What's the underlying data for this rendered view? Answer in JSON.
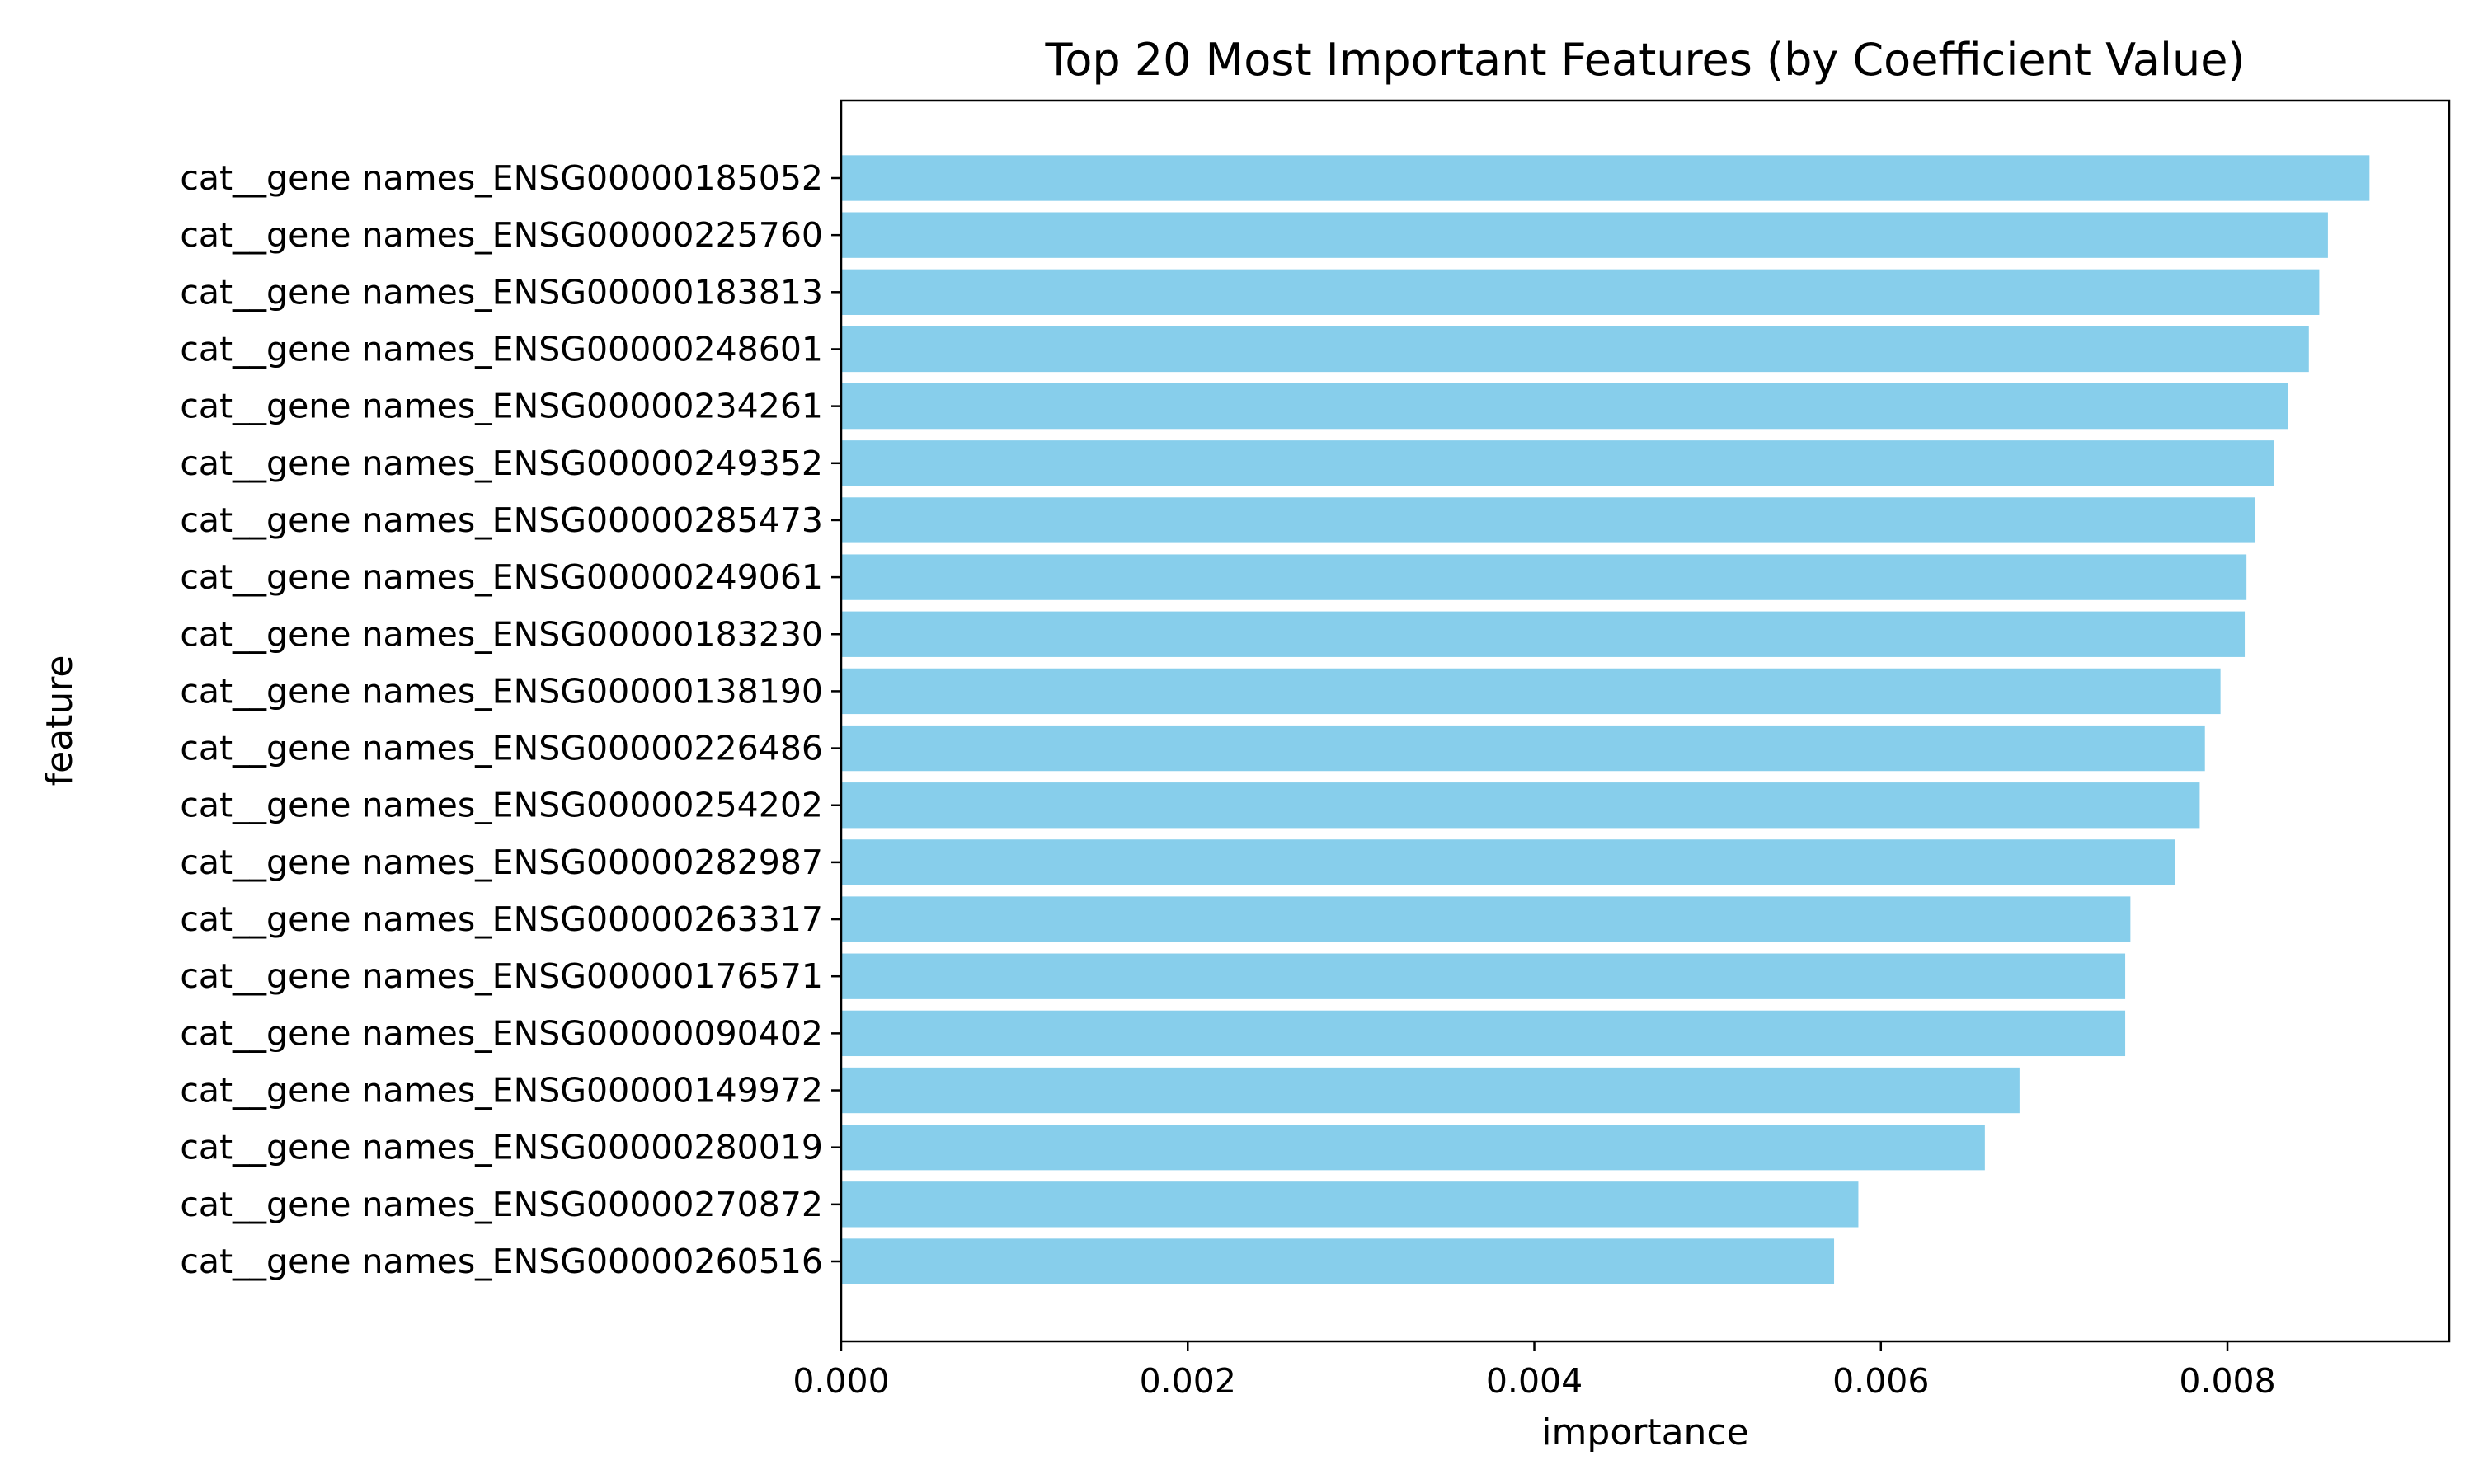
{
  "chart_data": {
    "type": "bar",
    "orientation": "horizontal",
    "title": "Top 20 Most Important Features (by Coefficient Value)",
    "xlabel": "importance",
    "ylabel": "feature",
    "xlim": [
      0,
      0.00928
    ],
    "xticks": [
      "0.000",
      "0.002",
      "0.004",
      "0.006",
      "0.008"
    ],
    "xtick_values": [
      0,
      0.002,
      0.004,
      0.006,
      0.008
    ],
    "bar_color": "#87ceeb",
    "grid": false,
    "categories": [
      "cat__gene names_ENSG00000185052",
      "cat__gene names_ENSG00000225760",
      "cat__gene names_ENSG00000183813",
      "cat__gene names_ENSG00000248601",
      "cat__gene names_ENSG00000234261",
      "cat__gene names_ENSG00000249352",
      "cat__gene names_ENSG00000285473",
      "cat__gene names_ENSG00000249061",
      "cat__gene names_ENSG00000183230",
      "cat__gene names_ENSG00000138190",
      "cat__gene names_ENSG00000226486",
      "cat__gene names_ENSG00000254202",
      "cat__gene names_ENSG00000282987",
      "cat__gene names_ENSG00000263317",
      "cat__gene names_ENSG00000176571",
      "cat__gene names_ENSG00000090402",
      "cat__gene names_ENSG00000149972",
      "cat__gene names_ENSG00000280019",
      "cat__gene names_ENSG00000270872",
      "cat__gene names_ENSG00000260516"
    ],
    "values": [
      0.00882,
      0.00858,
      0.00853,
      0.00847,
      0.00835,
      0.00827,
      0.00816,
      0.00811,
      0.0081,
      0.00796,
      0.00787,
      0.00784,
      0.0077,
      0.00744,
      0.00741,
      0.00741,
      0.0068,
      0.0066,
      0.00587,
      0.00573
    ]
  }
}
